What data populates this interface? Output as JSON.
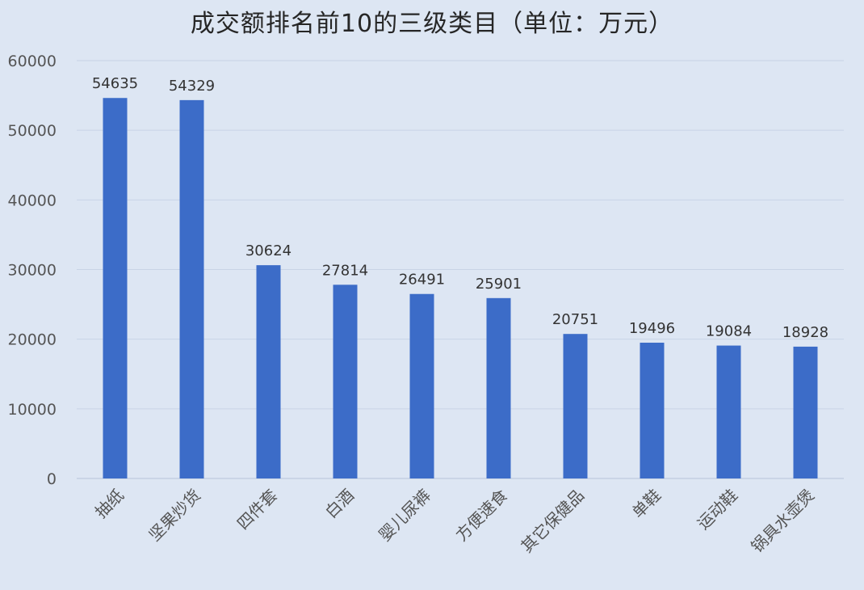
{
  "chart_data": {
    "type": "bar",
    "title": "成交额排名前10的三级类目（单位：万元）",
    "categories": [
      "抽纸",
      "坚果炒货",
      "四件套",
      "白酒",
      "婴儿尿裤",
      "方便速食",
      "其它保健品",
      "单鞋",
      "运动鞋",
      "锅具水壶煲"
    ],
    "values": [
      54635,
      54329,
      30624,
      27814,
      26491,
      25901,
      20751,
      19496,
      19084,
      18928
    ],
    "ylim": [
      0,
      60000
    ],
    "yticks": [
      0,
      10000,
      20000,
      30000,
      40000,
      50000,
      60000
    ],
    "grid": true,
    "bar_color": "#3c6cc8",
    "grid_color": "#c8d3e6"
  }
}
